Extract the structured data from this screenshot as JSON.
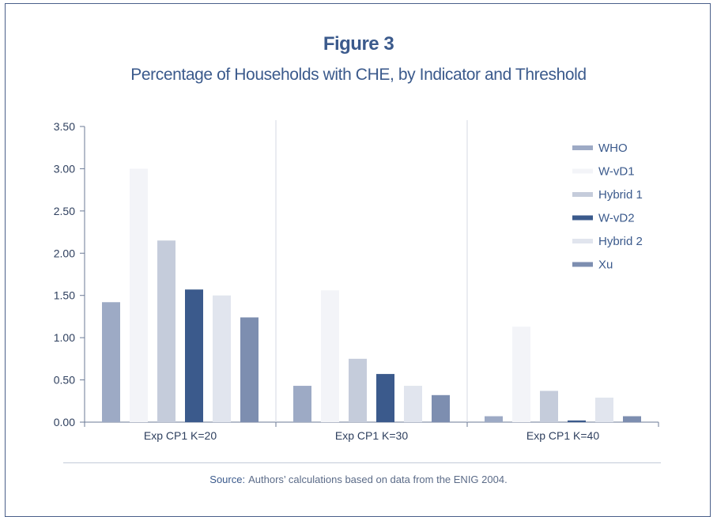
{
  "figure": {
    "label": "Figure 3",
    "title": "Percentage of Households with CHE, by Indicator and Threshold"
  },
  "source": {
    "label": "Source:",
    "text": "Authors’ calculations based on data from the ENIG 2004."
  },
  "chart_data": {
    "type": "bar",
    "categories": [
      "Exp CP1 K=20",
      "Exp CP1 K=30",
      "Exp CP1 K=40"
    ],
    "series": [
      {
        "name": "WHO",
        "color": "#9daac5",
        "values": [
          1.42,
          0.43,
          0.07
        ]
      },
      {
        "name": "W-vD1",
        "color": "#f3f4f8",
        "values": [
          3.0,
          1.56,
          1.13
        ]
      },
      {
        "name": "Hybrid 1",
        "color": "#c5ccdb",
        "values": [
          2.15,
          0.75,
          0.37
        ]
      },
      {
        "name": "W-vD2",
        "color": "#3b5a8c",
        "values": [
          1.57,
          0.57,
          0.02
        ]
      },
      {
        "name": "Hybrid 2",
        "color": "#e1e5ee",
        "values": [
          1.5,
          0.43,
          0.29
        ]
      },
      {
        "name": "Xu",
        "color": "#7d8eb0",
        "values": [
          1.24,
          0.32,
          0.07
        ]
      }
    ],
    "ylim": [
      0,
      3.5
    ],
    "yticks": [
      "0.00",
      "0.50",
      "1.00",
      "1.50",
      "2.00",
      "2.50",
      "3.00",
      "3.50"
    ],
    "xlabel": "",
    "ylabel": "",
    "legend": "top-right",
    "grid": false
  }
}
